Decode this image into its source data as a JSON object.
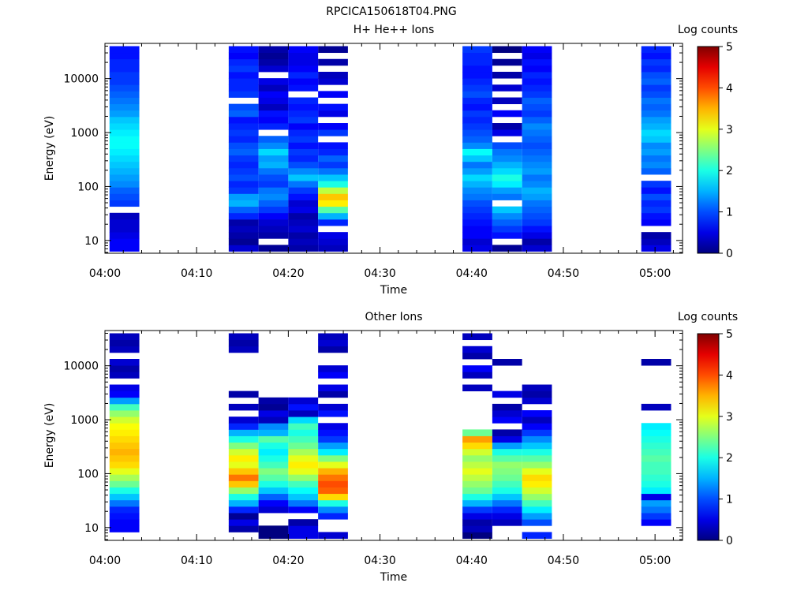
{
  "page_title": "RPCICA150618T04.PNG",
  "chart_data": [
    {
      "type": "heatmap",
      "title": "H+ He++ Ions",
      "xlabel": "Time",
      "ylabel": "Energy (eV)",
      "colorbar_label": "Log counts",
      "colorbar_ticks": [
        "0",
        "1",
        "2",
        "3",
        "4",
        "5"
      ],
      "clim": [
        0,
        5
      ],
      "y_scale": "log",
      "ylim": [
        5.8,
        45000
      ],
      "y_ticks": [
        10,
        100,
        1000,
        10000
      ],
      "y_tick_labels": [
        "10",
        "100",
        "1000",
        "10000"
      ],
      "xlim": [
        "04:00",
        "05:03"
      ],
      "x_ticks": [
        "04:00",
        "04:10",
        "04:20",
        "04:30",
        "04:40",
        "04:50",
        "05:00"
      ],
      "energy_bins": 32,
      "columns": [
        {
          "start": "04:00:30",
          "end": "04:03:45",
          "values": [
            0.6,
            0.6,
            0.5,
            0.4,
            0.4,
            0.3,
            null,
            0.9,
            1.0,
            1.1,
            1.3,
            1.4,
            1.5,
            1.6,
            1.7,
            1.8,
            1.9,
            1.9,
            1.8,
            1.7,
            1.6,
            1.4,
            1.3,
            1.2,
            1.1,
            1.0,
            0.9,
            0.9,
            0.8,
            0.8,
            0.7,
            0.7
          ]
        },
        {
          "start": "04:13:30",
          "end": "04:16:45",
          "values": [
            0.4,
            0.1,
            0.2,
            0.3,
            0.2,
            0.8,
            1.1,
            1.5,
            1.4,
            0.9,
            0.8,
            1.0,
            0.9,
            0.8,
            0.9,
            1.1,
            1.0,
            0.8,
            0.9,
            0.8,
            0.7,
            1.1,
            1.0,
            null,
            0.9,
            0.8,
            0.8,
            0.7,
            0.9,
            0.8,
            0.6,
            0.7
          ]
        },
        {
          "start": "04:16:45",
          "end": "04:20:00",
          "values": [
            0.1,
            null,
            0.2,
            0.3,
            0.4,
            0.6,
            0.9,
            1.1,
            1.3,
            1.2,
            0.9,
            1.0,
            1.2,
            1.5,
            1.4,
            1.7,
            1.3,
            1.1,
            null,
            0.8,
            0.6,
            0.7,
            0.3,
            0.5,
            0.6,
            0.3,
            0.5,
            null,
            0.4,
            0.2,
            0.1,
            0.2
          ]
        },
        {
          "start": "04:20:00",
          "end": "04:23:15",
          "values": [
            0.2,
            0.3,
            0.2,
            0.4,
            0.3,
            0.2,
            0.5,
            0.4,
            0.7,
            0.9,
            1.2,
            1.6,
            1.3,
            1.0,
            0.8,
            0.9,
            0.7,
            0.9,
            0.8,
            0.6,
            0.9,
            0.8,
            0.7,
            0.8,
            null,
            0.7,
            0.6,
            0.8,
            0.6,
            0.5,
            0.5,
            0.6
          ]
        },
        {
          "start": "04:23:15",
          "end": "04:26:30",
          "values": [
            0.3,
            0.4,
            0.5,
            null,
            0.8,
            1.5,
            2.3,
            3.2,
            3.4,
            2.8,
            2.0,
            1.6,
            1.2,
            0.9,
            1.1,
            0.8,
            0.7,
            null,
            0.9,
            0.6,
            null,
            0.5,
            0.7,
            null,
            0.6,
            null,
            0.4,
            0.3,
            null,
            0.2,
            null,
            0.1
          ]
        },
        {
          "start": "04:39:00",
          "end": "04:42:15",
          "values": [
            0.5,
            0.4,
            0.6,
            0.6,
            0.7,
            0.8,
            0.9,
            1.0,
            1.2,
            1.3,
            1.5,
            1.7,
            1.4,
            1.2,
            1.6,
            1.9,
            1.3,
            1.1,
            1.0,
            0.9,
            0.8,
            0.9,
            0.7,
            0.8,
            1.0,
            0.9,
            0.8,
            0.7,
            0.7,
            0.8,
            0.8,
            0.9
          ]
        },
        {
          "start": "04:42:15",
          "end": "04:45:30",
          "values": [
            0.1,
            null,
            0.7,
            0.9,
            1.1,
            1.3,
            1.6,
            null,
            1.2,
            1.4,
            1.8,
            2.0,
            1.7,
            1.5,
            1.3,
            1.2,
            1.0,
            null,
            0.5,
            0.2,
            null,
            0.6,
            null,
            0.3,
            null,
            0.4,
            null,
            0.2,
            null,
            0.1,
            null,
            0.0
          ]
        },
        {
          "start": "04:45:30",
          "end": "04:48:45",
          "values": [
            0.4,
            0.2,
            0.5,
            0.7,
            0.9,
            1.0,
            1.1,
            1.2,
            1.4,
            1.5,
            1.3,
            1.2,
            1.4,
            1.3,
            1.2,
            1.1,
            1.0,
            1.1,
            1.2,
            1.3,
            1.1,
            0.9,
            1.0,
            1.1,
            0.9,
            0.8,
            0.7,
            0.8,
            0.6,
            0.7,
            0.5,
            0.6
          ]
        },
        {
          "start": "04:58:30",
          "end": "05:01:45",
          "values": [
            0.5,
            0.3,
            0.2,
            null,
            0.6,
            0.7,
            0.9,
            0.8,
            1.0,
            0.7,
            0.9,
            null,
            1.1,
            1.3,
            1.2,
            1.4,
            1.3,
            1.6,
            1.7,
            1.5,
            1.4,
            1.2,
            1.1,
            1.2,
            1.0,
            0.9,
            1.1,
            1.0,
            0.8,
            0.9,
            0.7,
            0.8
          ]
        }
      ]
    },
    {
      "type": "heatmap",
      "title": "Other Ions",
      "xlabel": "Time",
      "ylabel": "Energy (eV)",
      "colorbar_label": "Log counts",
      "colorbar_ticks": [
        "0",
        "1",
        "2",
        "3",
        "4",
        "5"
      ],
      "clim": [
        0,
        5
      ],
      "y_scale": "log",
      "ylim": [
        5.8,
        45000
      ],
      "y_ticks": [
        10,
        100,
        1000,
        10000
      ],
      "y_tick_labels": [
        "10",
        "100",
        "1000",
        "10000"
      ],
      "xlim": [
        "04:00",
        "05:03"
      ],
      "x_ticks": [
        "04:00",
        "04:10",
        "04:20",
        "04:30",
        "04:40",
        "04:50",
        "05:00"
      ],
      "energy_bins": 32,
      "columns": [
        {
          "start": "04:00:30",
          "end": "04:03:45",
          "values": [
            null,
            0.6,
            0.6,
            0.7,
            0.8,
            1.2,
            1.6,
            2.0,
            2.4,
            2.7,
            3.0,
            3.3,
            3.4,
            3.5,
            3.4,
            3.3,
            3.2,
            3.1,
            2.9,
            2.6,
            2.2,
            1.4,
            0.6,
            0.5,
            null,
            0.3,
            0.2,
            0.4,
            null,
            0.3,
            0.2,
            0.3
          ]
        },
        {
          "start": "04:13:30",
          "end": "04:16:45",
          "values": [
            null,
            0.2,
            0.5,
            0.1,
            0.8,
            1.5,
            2.0,
            2.6,
            3.4,
            3.8,
            3.4,
            3.0,
            3.2,
            2.9,
            2.5,
            2.0,
            1.5,
            0.8,
            0.4,
            null,
            0.3,
            null,
            0.2,
            null,
            null,
            null,
            null,
            null,
            null,
            0.3,
            0.2,
            0.3
          ]
        },
        {
          "start": "04:16:45",
          "end": "04:20:00",
          "values": [
            0.0,
            0.0,
            null,
            null,
            0.4,
            0.6,
            1.1,
            1.6,
            2.0,
            2.3,
            2.5,
            2.2,
            2.0,
            1.8,
            2.0,
            2.3,
            1.5,
            1.3,
            0.3,
            0.5,
            0.1,
            0.2,
            null,
            null,
            null,
            null,
            null,
            null,
            null,
            null,
            null,
            null
          ]
        },
        {
          "start": "04:20:00",
          "end": "04:23:15",
          "values": [
            0.5,
            0.5,
            0.2,
            null,
            0.6,
            1.2,
            1.6,
            1.9,
            2.2,
            2.6,
            3.0,
            3.2,
            3.0,
            2.7,
            2.4,
            2.2,
            2.0,
            2.2,
            1.7,
            0.3,
            0.7,
            0.4,
            null,
            null,
            null,
            null,
            null,
            null,
            null,
            null,
            null,
            null
          ]
        },
        {
          "start": "04:23:15",
          "end": "04:26:30",
          "values": [
            0.4,
            null,
            null,
            0.8,
            1.3,
            2.0,
            3.3,
            3.9,
            4.0,
            3.8,
            3.5,
            3.0,
            2.5,
            1.8,
            1.4,
            0.9,
            0.7,
            0.5,
            null,
            0.7,
            0.4,
            null,
            0.2,
            0.5,
            null,
            0.6,
            0.4,
            null,
            null,
            0.2,
            0.4,
            0.3
          ]
        },
        {
          "start": "04:39:00",
          "end": "04:42:15",
          "values": [
            0.0,
            0.3,
            0.2,
            0.5,
            0.9,
            1.5,
            2.0,
            2.4,
            2.6,
            2.8,
            3.0,
            2.8,
            2.6,
            2.9,
            3.3,
            3.6,
            2.4,
            null,
            null,
            null,
            null,
            null,
            null,
            0.3,
            null,
            0.3,
            0.6,
            null,
            0.2,
            0.4,
            null,
            0.3
          ]
        },
        {
          "start": "04:42:15",
          "end": "04:45:30",
          "values": [
            null,
            null,
            0.3,
            0.5,
            0.8,
            1.2,
            1.6,
            2.0,
            2.2,
            2.4,
            2.5,
            2.6,
            2.3,
            2.0,
            1.4,
            0.5,
            0.2,
            null,
            0.6,
            0.4,
            0.2,
            null,
            0.5,
            null,
            null,
            null,
            null,
            0.2,
            null,
            null,
            null,
            null
          ]
        },
        {
          "start": "04:45:30",
          "end": "04:48:45",
          "values": [
            0.8,
            null,
            1.0,
            1.4,
            1.8,
            2.2,
            2.6,
            2.9,
            3.2,
            3.3,
            3.0,
            2.6,
            2.3,
            2.0,
            1.6,
            1.3,
            0.9,
            0.6,
            0.3,
            0.6,
            null,
            0.4,
            0.2,
            0.3,
            null,
            null,
            null,
            null,
            null,
            null,
            null,
            null
          ]
        },
        {
          "start": "04:58:30",
          "end": "05:01:45",
          "values": [
            null,
            null,
            0.6,
            0.9,
            1.2,
            1.4,
            0.5,
            1.8,
            2.0,
            2.1,
            2.2,
            2.2,
            2.3,
            2.2,
            2.1,
            2.0,
            1.9,
            1.8,
            null,
            null,
            0.3,
            null,
            null,
            null,
            null,
            null,
            null,
            0.2,
            null,
            null,
            null,
            null
          ]
        }
      ]
    }
  ]
}
